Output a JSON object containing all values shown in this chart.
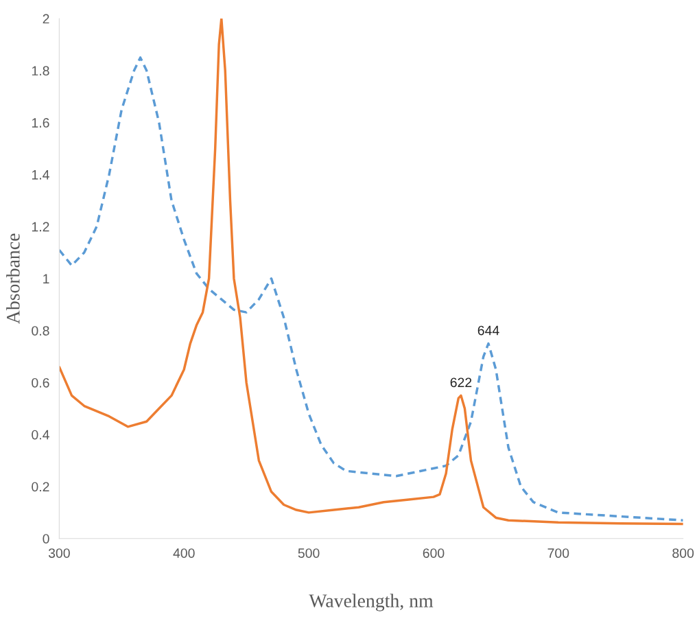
{
  "chart_data": {
    "type": "line",
    "xlabel": "Wavelength, nm",
    "ylabel": "Absorbance",
    "xlim": [
      300,
      800
    ],
    "xticks": [
      300,
      400,
      500,
      600,
      700,
      800
    ],
    "ylim": [
      0,
      2
    ],
    "yticks": [
      0,
      {
        "value": 0.2,
        "label": "0.2"
      },
      {
        "value": 0.4,
        "label": "0.4"
      },
      {
        "value": 0.6,
        "label": "0.6"
      },
      {
        "value": 0.8,
        "label": "0.8"
      },
      1,
      {
        "value": 1.2,
        "label": "1.2"
      },
      {
        "value": 1.4,
        "label": "1.4"
      },
      {
        "value": 1.6,
        "label": "1.6"
      },
      {
        "value": 1.8,
        "label": "1.8"
      },
      2
    ],
    "grid": false,
    "series": [
      {
        "color": "#5b9bd5",
        "line_style": "dashed",
        "x": [
          300,
          310,
          320,
          330,
          340,
          350,
          360,
          365,
          370,
          380,
          390,
          400,
          410,
          420,
          430,
          440,
          450,
          460,
          470,
          480,
          490,
          500,
          510,
          520,
          530,
          550,
          570,
          590,
          610,
          620,
          630,
          640,
          644,
          650,
          660,
          670,
          680,
          700,
          750,
          800
        ],
        "values": [
          1.11,
          1.05,
          1.1,
          1.2,
          1.4,
          1.65,
          1.8,
          1.85,
          1.8,
          1.6,
          1.3,
          1.15,
          1.02,
          0.96,
          0.92,
          0.88,
          0.87,
          0.92,
          1.0,
          0.85,
          0.65,
          0.48,
          0.36,
          0.29,
          0.26,
          0.25,
          0.24,
          0.26,
          0.28,
          0.32,
          0.45,
          0.7,
          0.75,
          0.65,
          0.35,
          0.2,
          0.14,
          0.1,
          0.085,
          0.07
        ]
      },
      {
        "color": "#ed7d31",
        "line_style": "solid",
        "x": [
          300,
          310,
          320,
          340,
          355,
          370,
          380,
          390,
          400,
          405,
          410,
          415,
          420,
          425,
          428,
          430,
          433,
          437,
          440,
          445,
          450,
          455,
          460,
          470,
          480,
          490,
          500,
          520,
          540,
          560,
          580,
          600,
          605,
          610,
          615,
          620,
          622,
          625,
          630,
          640,
          650,
          660,
          700,
          750,
          800
        ],
        "values": [
          0.66,
          0.55,
          0.51,
          0.47,
          0.43,
          0.45,
          0.5,
          0.55,
          0.65,
          0.75,
          0.82,
          0.87,
          1.0,
          1.5,
          1.9,
          2.0,
          1.8,
          1.3,
          1.0,
          0.85,
          0.6,
          0.45,
          0.3,
          0.18,
          0.13,
          0.11,
          0.1,
          0.11,
          0.12,
          0.14,
          0.15,
          0.16,
          0.17,
          0.25,
          0.42,
          0.54,
          0.55,
          0.5,
          0.3,
          0.12,
          0.08,
          0.07,
          0.062,
          0.058,
          0.056
        ]
      }
    ],
    "annotations": [
      {
        "text": "622",
        "x": 622,
        "y": 0.55
      },
      {
        "text": "644",
        "x": 644,
        "y": 0.75
      }
    ]
  }
}
